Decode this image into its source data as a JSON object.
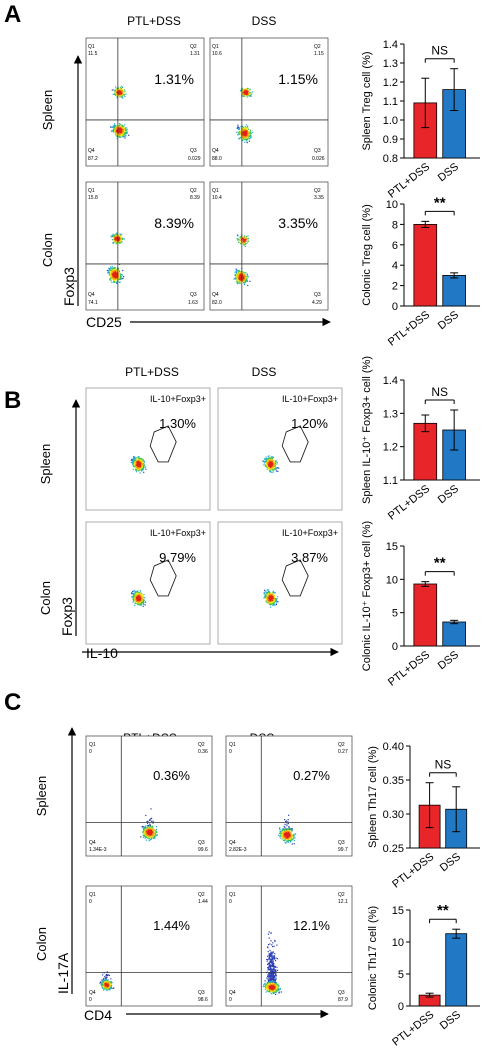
{
  "panels": [
    {
      "letter": "A",
      "groups": [
        "PTL+DSS",
        "DSS"
      ],
      "x_axis_label": "CD25",
      "y_axis_label": "Foxp3",
      "tissues": [
        "Spleen",
        "Colon"
      ],
      "flow": [
        {
          "tissue": "Spleen",
          "plots": [
            {
              "main": "1.31%",
              "q1": [
                "Q1",
                "11.5"
              ],
              "q2": [
                "Q2",
                "1.31"
              ],
              "q3": [
                "Q3",
                "0.029"
              ],
              "q4": [
                "Q4",
                "87.2"
              ]
            },
            {
              "main": "1.15%",
              "q1": [
                "Q1",
                "10.6"
              ],
              "q2": [
                "Q2",
                "1.15"
              ],
              "q3": [
                "Q3",
                "0.026"
              ],
              "q4": [
                "Q4",
                "88.0"
              ]
            }
          ]
        },
        {
          "tissue": "Colon",
          "plots": [
            {
              "main": "8.39%",
              "q1": [
                "Q1",
                "15.8"
              ],
              "q2": [
                "Q2",
                "8.39"
              ],
              "q3": [
                "Q3",
                "1.63"
              ],
              "q4": [
                "Q4",
                "74.1"
              ]
            },
            {
              "main": "3.35%",
              "q1": [
                "Q1",
                "10.4"
              ],
              "q2": [
                "Q2",
                "3.35"
              ],
              "q3": [
                "Q3",
                "4.29"
              ],
              "q4": [
                "Q4",
                "82.0"
              ]
            }
          ]
        }
      ]
    },
    {
      "letter": "B",
      "groups": [
        "PTL+DSS",
        "DSS"
      ],
      "x_axis_label": "IL-10",
      "y_axis_label": "Foxp3",
      "tissues": [
        "Spleen",
        "Colon"
      ],
      "flow": [
        {
          "tissue": "Spleen",
          "plots": [
            {
              "gate": "IL-10+Foxp3+",
              "main": "1.30%"
            },
            {
              "gate": "IL-10+Foxp3+",
              "main": "1.20%"
            }
          ]
        },
        {
          "tissue": "Colon",
          "plots": [
            {
              "gate": "IL-10+Foxp3+",
              "main": "9.79%"
            },
            {
              "gate": "IL-10+Foxp3+",
              "main": "3.87%"
            }
          ]
        }
      ]
    },
    {
      "letter": "C",
      "groups": [
        "PTL+DSS",
        "DSS"
      ],
      "x_axis_label": "CD4",
      "y_axis_label": "IL-17A",
      "tissues": [
        "Spleen",
        "Colon"
      ],
      "flow": [
        {
          "tissue": "Spleen",
          "plots": [
            {
              "main": "0.36%",
              "q1": [
                "Q1",
                "0"
              ],
              "q2": [
                "Q2",
                "0.36"
              ],
              "q3": [
                "Q3",
                "99.6"
              ],
              "q4": [
                "Q4",
                "1.34E-3"
              ]
            },
            {
              "main": "0.27%",
              "q1": [
                "Q1",
                "0"
              ],
              "q2": [
                "Q2",
                "0.27"
              ],
              "q3": [
                "Q3",
                "99.7"
              ],
              "q4": [
                "Q4",
                "2.82E-3"
              ]
            }
          ]
        },
        {
          "tissue": "Colon",
          "plots": [
            {
              "main": "1.44%",
              "q1": [
                "Q1",
                "0"
              ],
              "q2": [
                "Q2",
                "1.44"
              ],
              "q3": [
                "Q3",
                "98.6"
              ],
              "q4": [
                "Q4",
                "0"
              ]
            },
            {
              "main": "12.1%",
              "q1": [
                "Q1",
                "0"
              ],
              "q2": [
                "Q2",
                "12.1"
              ],
              "q3": [
                "Q3",
                "87.9"
              ],
              "q4": [
                "Q4",
                "0"
              ]
            }
          ]
        }
      ]
    }
  ],
  "colors": {
    "ptl": "#e8262a",
    "dss": "#2178c4"
  },
  "chart_data": [
    {
      "type": "bar",
      "panel": "A",
      "ylabel": "Spleen Treg cell (%)",
      "categories": [
        "PTL+DSS",
        "DSS"
      ],
      "values": [
        1.09,
        1.16
      ],
      "errors": [
        0.13,
        0.11
      ],
      "ylim": [
        0.8,
        1.4
      ],
      "yticks": [
        "0.8",
        "0.9",
        "1.0",
        "1.1",
        "1.2",
        "1.3",
        "1.4"
      ],
      "significance": "NS"
    },
    {
      "type": "bar",
      "panel": "A",
      "ylabel": "Colonic Treg cell (%)",
      "categories": [
        "PTL+DSS",
        "DSS"
      ],
      "values": [
        8.0,
        3.0
      ],
      "errors": [
        0.3,
        0.25
      ],
      "ylim": [
        0,
        10
      ],
      "yticks": [
        "0",
        "2",
        "4",
        "6",
        "8",
        "10"
      ],
      "significance": "**"
    },
    {
      "type": "bar",
      "panel": "B",
      "ylabel": "Spleen IL-10⁺ Foxp3+ cell (%)",
      "categories": [
        "PTL+DSS",
        "DSS"
      ],
      "values": [
        1.27,
        1.25
      ],
      "errors": [
        0.025,
        0.06
      ],
      "ylim": [
        1.1,
        1.4
      ],
      "yticks": [
        "1.1",
        "1.2",
        "1.3",
        "1.4"
      ],
      "significance": "NS"
    },
    {
      "type": "bar",
      "panel": "B",
      "ylabel": "Colonic IL-10⁺ Foxp3+ cell (%)",
      "categories": [
        "PTL+DSS",
        "DSS"
      ],
      "values": [
        9.3,
        3.6
      ],
      "errors": [
        0.35,
        0.25
      ],
      "ylim": [
        0,
        15
      ],
      "yticks": [
        "0",
        "5",
        "10",
        "15"
      ],
      "significance": "**"
    },
    {
      "type": "bar",
      "panel": "C",
      "ylabel": "Spleen Th17 cell (%)",
      "categories": [
        "PTL+DSS",
        "DSS"
      ],
      "values": [
        0.313,
        0.307
      ],
      "errors": [
        0.033,
        0.033
      ],
      "ylim": [
        0.25,
        0.4
      ],
      "yticks": [
        "0.25",
        "0.30",
        "0.35",
        "0.40"
      ],
      "significance": "NS"
    },
    {
      "type": "bar",
      "panel": "C",
      "ylabel": "Colonic Th17 cell (%)",
      "categories": [
        "PTL+DSS",
        "DSS"
      ],
      "values": [
        1.7,
        11.3
      ],
      "errors": [
        0.3,
        0.7
      ],
      "ylim": [
        0,
        15
      ],
      "yticks": [
        "0",
        "5",
        "10",
        "15"
      ],
      "significance": "**"
    }
  ]
}
